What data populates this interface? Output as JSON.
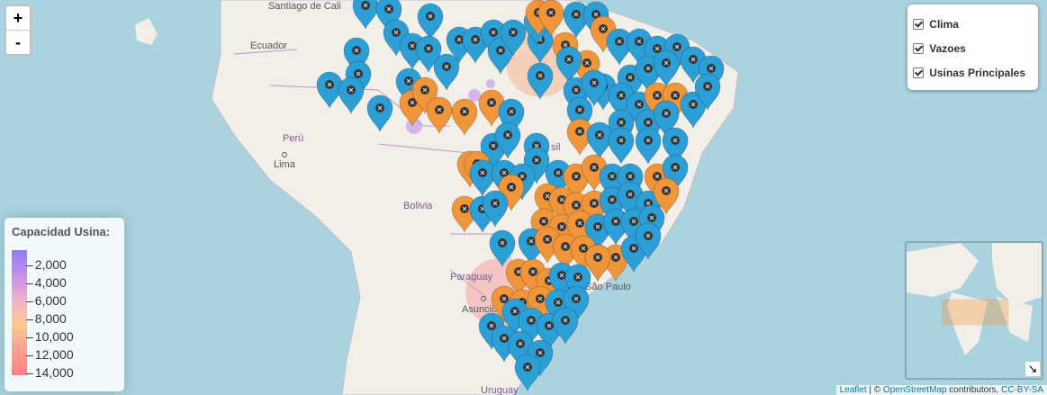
{
  "controls": {
    "zoom_in": "+",
    "zoom_out": "-",
    "minimap_toggle": "↘"
  },
  "layers": [
    {
      "label": "Clima",
      "checked": true
    },
    {
      "label": "Vazoes",
      "checked": true
    },
    {
      "label": "Usinas Principales",
      "checked": true
    }
  ],
  "legend": {
    "title": "Capacidad Usina:",
    "ticks": [
      "2,000",
      "4,000",
      "6,000",
      "8,000",
      "10,000",
      "12,000",
      "14,000"
    ]
  },
  "places": {
    "santiago_de_cali": "Santiago de Cali",
    "ecuador": "Ecuador",
    "peru": "Perú",
    "lima": "Lima",
    "bolivia": "Bolivia",
    "paraguay": "Paraguay",
    "asuncion": "Asunción",
    "sao_paulo": "São Paulo",
    "uruguay": "Uruguay",
    "brasil_fragment": "sil"
  },
  "attribution": {
    "leaflet": "Leaflet",
    "sep": " | © ",
    "osm": "OpenStreetMap",
    "contrib": " contributors, ",
    "license": "CC-BY-SA"
  },
  "colors": {
    "ocean": "#aad3df",
    "land": "#f2efe9",
    "blue_marker": "#2c9fd6",
    "orange_marker": "#f0953a"
  }
}
